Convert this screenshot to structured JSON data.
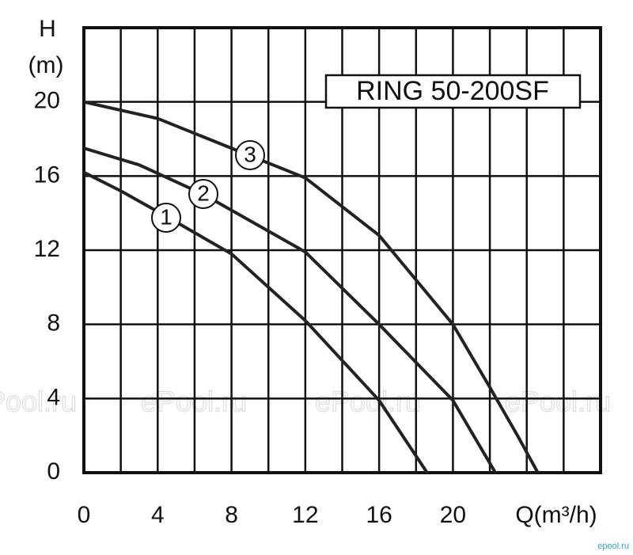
{
  "chart_data": {
    "type": "line",
    "title": "RING 50-200SF",
    "y_label_top": "H",
    "y_label_unit": "(m)",
    "x_label": "Q(m³/h)",
    "xlim": [
      0,
      28
    ],
    "ylim": [
      0,
      24
    ],
    "xticks": [
      0,
      4,
      8,
      12,
      16,
      20
    ],
    "yticks": [
      0,
      4,
      8,
      12,
      16,
      20
    ],
    "x_minor_grid": [
      2,
      6,
      10,
      14,
      18,
      22,
      24,
      26
    ],
    "y_minor_grid": [
      24
    ],
    "grid": true,
    "watermark": "ePool.ru",
    "footer": "epool.ru",
    "series": [
      {
        "name": "1",
        "color": "#222222",
        "x": [
          0,
          2,
          4.5,
          8,
          12,
          16,
          18.6
        ],
        "values": [
          16.2,
          15.2,
          13.8,
          11.8,
          8.2,
          3.9,
          0
        ]
      },
      {
        "name": "2",
        "color": "#222222",
        "x": [
          0,
          3,
          6.5,
          12,
          16,
          20,
          22.3
        ],
        "values": [
          17.5,
          16.6,
          15.0,
          11.9,
          8.0,
          3.9,
          0
        ]
      },
      {
        "name": "3",
        "color": "#222222",
        "x": [
          0,
          4,
          9,
          12,
          16,
          20,
          22,
          23.5,
          24.6
        ],
        "values": [
          20,
          19.1,
          17.1,
          15.9,
          12.8,
          8.0,
          4.6,
          2.0,
          0
        ]
      }
    ]
  }
}
